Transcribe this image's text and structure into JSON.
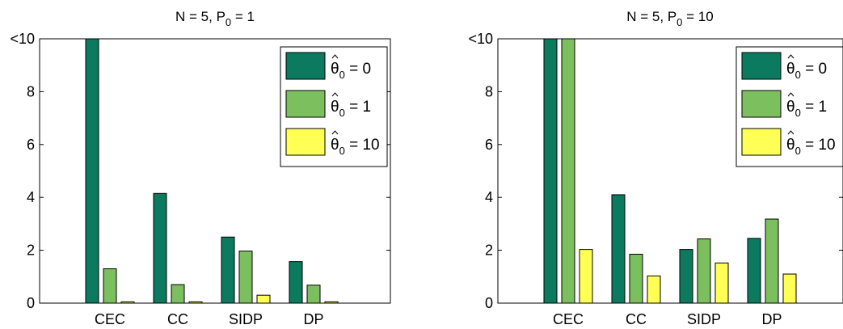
{
  "chart_data": [
    {
      "type": "bar",
      "title": "N = 5, P0 = 1",
      "title_main": "N = 5, P",
      "title_sub": "0",
      "title_tail": " = 1",
      "categories": [
        "CEC",
        "CC",
        "SIDP",
        "DP"
      ],
      "ylim": [
        0,
        10
      ],
      "yticks": [
        "0",
        "2",
        "4",
        "6",
        "8",
        "<10"
      ],
      "legend_position": "top-right",
      "series": [
        {
          "name": "θ̂0 = 0",
          "label": "θ",
          "sub": "0",
          "value_text": " = 0",
          "color": "#0b7a5f",
          "values": [
            10,
            4.15,
            2.5,
            1.57
          ]
        },
        {
          "name": "θ̂0 = 1",
          "label": "θ",
          "sub": "0",
          "value_text": " = 1",
          "color": "#7cbf5f",
          "values": [
            1.3,
            0.7,
            1.97,
            0.68
          ]
        },
        {
          "name": "θ̂0 = 10",
          "label": "θ",
          "sub": "0",
          "value_text": " = 10",
          "color": "#ffff55",
          "values": [
            0.05,
            0.05,
            0.3,
            0.05
          ]
        }
      ]
    },
    {
      "type": "bar",
      "title": "N = 5, P0 = 10",
      "title_main": "N = 5, P",
      "title_sub": "0",
      "title_tail": " = 10",
      "categories": [
        "CEC",
        "CC",
        "SIDP",
        "DP"
      ],
      "ylim": [
        0,
        10
      ],
      "yticks": [
        "0",
        "2",
        "4",
        "6",
        "8",
        "<10"
      ],
      "legend_position": "top-right",
      "series": [
        {
          "name": "θ̂0 = 0",
          "label": "θ",
          "sub": "0",
          "value_text": " = 0",
          "color": "#0b7a5f",
          "values": [
            10,
            4.1,
            2.03,
            2.45
          ]
        },
        {
          "name": "θ̂0 = 1",
          "label": "θ",
          "sub": "0",
          "value_text": " = 1",
          "color": "#7cbf5f",
          "values": [
            10,
            1.85,
            2.43,
            3.18
          ]
        },
        {
          "name": "θ̂0 = 10",
          "label": "θ",
          "sub": "0",
          "value_text": " = 10",
          "color": "#ffff55",
          "values": [
            2.03,
            1.03,
            1.52,
            1.1
          ]
        }
      ]
    }
  ]
}
